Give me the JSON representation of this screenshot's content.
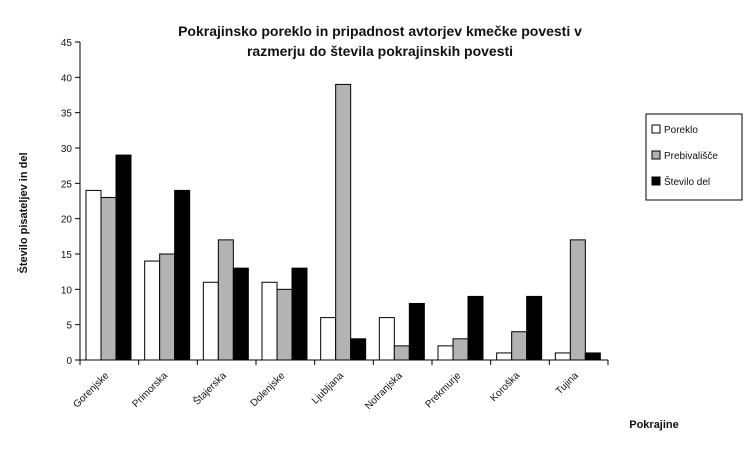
{
  "chart_data": {
    "type": "bar",
    "title_line1": "Pokrajinsko poreklo in pripadnost avtorjev kmečke povesti v",
    "title_line2": "razmerju do števila pokrajinskih povesti",
    "xlabel": "Pokrajine",
    "ylabel": "Število pisateljev in del",
    "ylim": [
      0,
      45
    ],
    "yticks": [
      0,
      5,
      10,
      15,
      20,
      25,
      30,
      35,
      40,
      45
    ],
    "categories": [
      "Gorenjske",
      "Primorska",
      "Štajerska",
      "Dolenjske",
      "Ljubljana",
      "Notranjska",
      "Prekmurje",
      "Koroška",
      "Tujina"
    ],
    "series": [
      {
        "name": "Poreklo",
        "color": "#ffffff",
        "values": [
          24,
          14,
          11,
          11,
          6,
          6,
          2,
          1,
          1
        ]
      },
      {
        "name": "Prebivališče",
        "color": "#b3b3b3",
        "values": [
          23,
          15,
          17,
          10,
          39,
          2,
          3,
          4,
          17
        ]
      },
      {
        "name": "Število del",
        "color": "#000000",
        "values": [
          29,
          24,
          13,
          13,
          3,
          8,
          9,
          9,
          1
        ]
      }
    ],
    "legend_position": "right",
    "grid": false
  }
}
